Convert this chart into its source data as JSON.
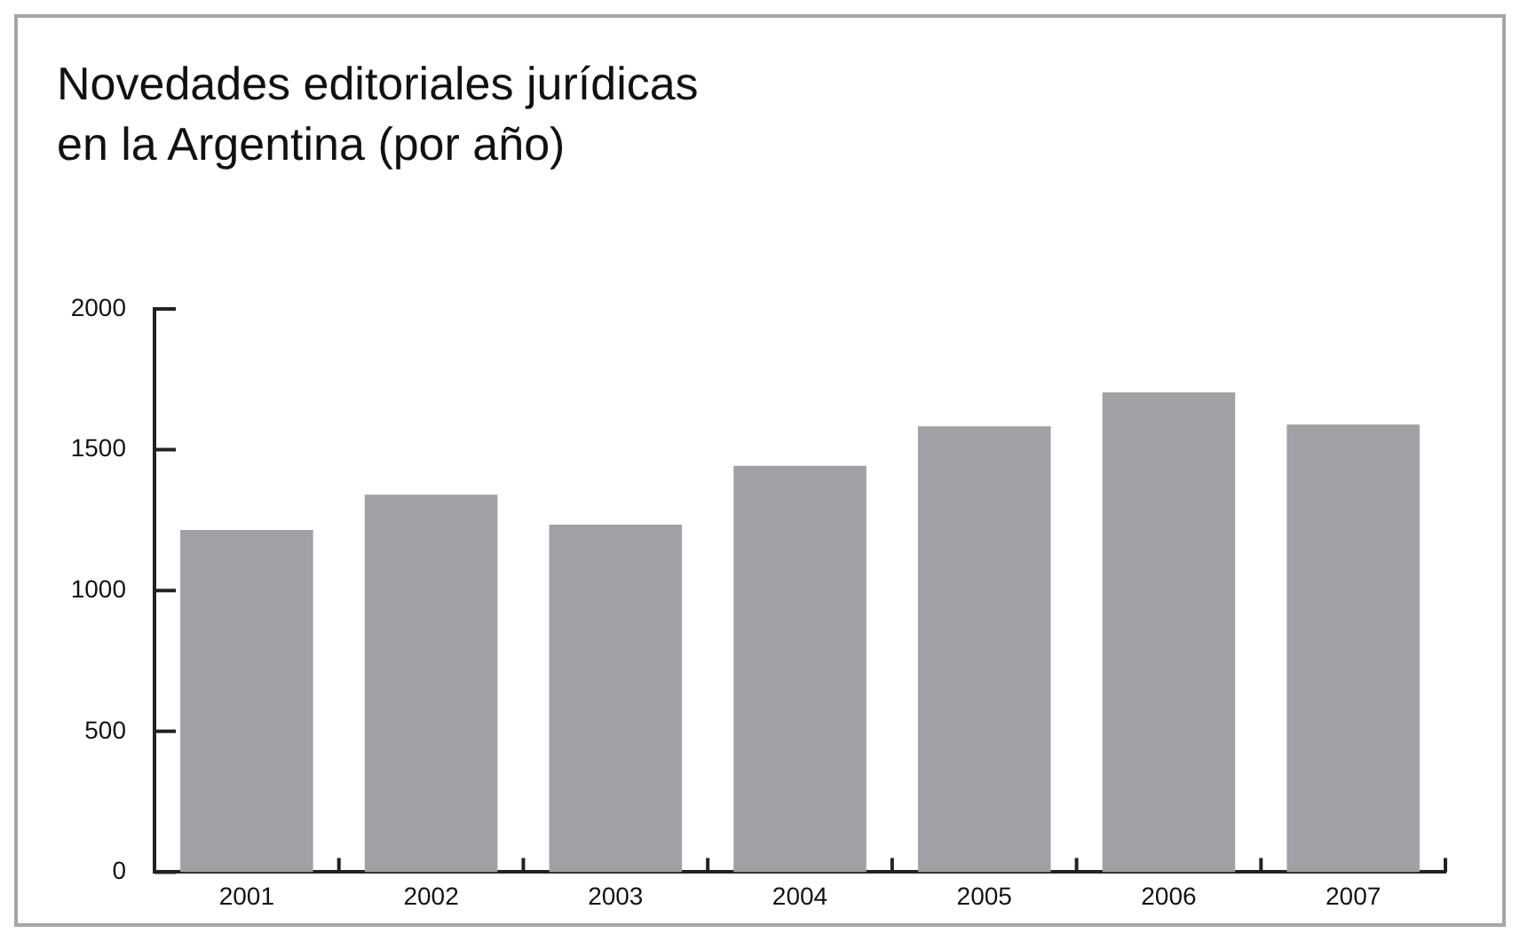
{
  "chart_data": {
    "type": "bar",
    "title": "Novedades editoriales jurídicas en la Argentina (por año)",
    "categories": [
      "2001",
      "2002",
      "2003",
      "2004",
      "2005",
      "2006",
      "2007"
    ],
    "values": [
      1215,
      1340,
      1234,
      1443,
      1583,
      1704,
      1589
    ],
    "color": "#a0a1a5",
    "ylim": [
      0,
      2000
    ],
    "yticks": [
      0,
      500,
      1000,
      1500,
      2000
    ],
    "grid": false,
    "legend": false
  }
}
